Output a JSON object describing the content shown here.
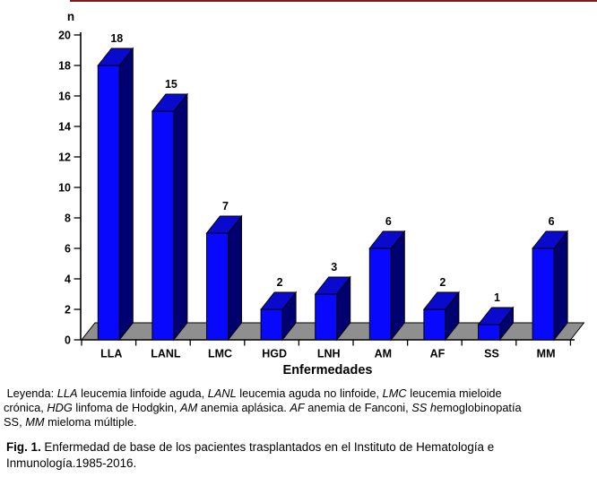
{
  "figure": {
    "top_rule_color": "#7b1e1e",
    "background_color": "#ffffff"
  },
  "chart_data": {
    "type": "bar",
    "style": "3d-column",
    "title": "",
    "y_axis_label": "n",
    "x_axis_label": "Enfermedades",
    "categories": [
      "LLA",
      "LANL",
      "LMC",
      "HGD",
      "LNH",
      "AM",
      "AF",
      "SS",
      "MM"
    ],
    "values": [
      18,
      15,
      7,
      2,
      3,
      6,
      2,
      1,
      6
    ],
    "value_labels": [
      "18",
      "15",
      "7",
      "2",
      "3",
      "6",
      "2",
      "1",
      "6"
    ],
    "y_ticks": [
      0,
      2,
      4,
      6,
      8,
      10,
      12,
      14,
      16,
      18,
      20
    ],
    "ylim": [
      0,
      20
    ],
    "grid": false,
    "legend_position": "none",
    "colors": {
      "bar_front": "#0808fc",
      "bar_top": "#0a0acc",
      "bar_side": "#000070",
      "bar_outline": "#000000",
      "floor": "#8f8f8f",
      "axis": "#000000",
      "label_text": "#000000"
    }
  },
  "legend": {
    "lines": [
      [
        {
          "t": " Leyenda: "
        },
        {
          "t": "LLA",
          "i": true
        },
        {
          "t": " leucemia linfoide aguda, "
        },
        {
          "t": "LANL",
          "i": true
        },
        {
          "t": " leucemia aguda no linfoide, "
        },
        {
          "t": "LMC",
          "i": true
        },
        {
          "t": " leucemia mieloide"
        }
      ],
      [
        {
          "t": "crónica, "
        },
        {
          "t": "HDG",
          "i": true
        },
        {
          "t": " linfoma de Hodgkin, "
        },
        {
          "t": "AM",
          "i": true
        },
        {
          "t": " anemia aplásica. "
        },
        {
          "t": "AF",
          "i": true
        },
        {
          "t": " anemia de Fanconi, "
        },
        {
          "t": "SS",
          "i": true
        },
        {
          "t": " "
        },
        {
          "t": "h",
          "i": true
        },
        {
          "t": "emoglobinopatía"
        }
      ],
      [
        {
          "t": "SS, "
        },
        {
          "t": "MM",
          "i": true
        },
        {
          "t": " mieloma múltiple."
        }
      ]
    ]
  },
  "caption": {
    "lines": [
      [
        {
          "t": "Fig. 1.",
          "b": true
        },
        {
          "t": " Enfermedad de base de los pacientes trasplantados en el Instituto de Hematología e"
        }
      ],
      [
        {
          "t": "Inmunología.1985-2016."
        }
      ]
    ]
  }
}
